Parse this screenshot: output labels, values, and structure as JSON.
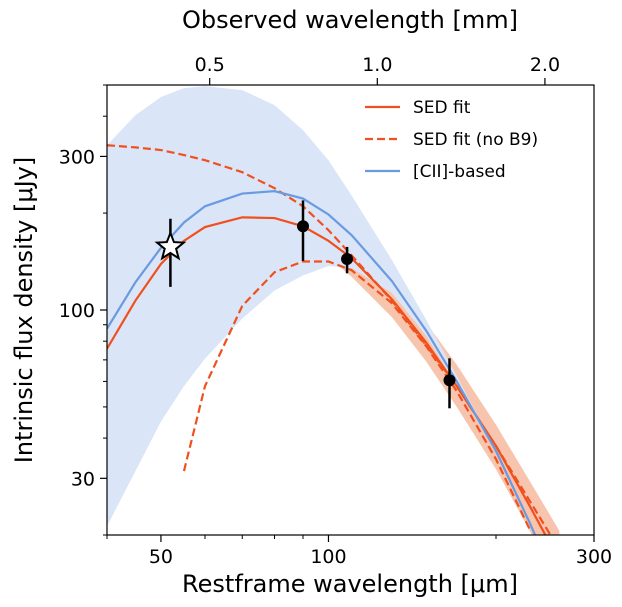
{
  "chart_data": {
    "type": "line",
    "x_label": "Restframe wavelength [μm]",
    "x2_label": "Observed wavelength [mm]",
    "y_label": "Intrinsic flux density [μJy]",
    "log_x": true,
    "log_y": true,
    "xlim": [
      40,
      300
    ],
    "xticks": [
      50,
      100,
      300
    ],
    "xminor_ticks": [
      40,
      60,
      70,
      80,
      90,
      200
    ],
    "x2lim": [
      0.327,
      2.45
    ],
    "x2ticks": [
      0.5,
      {
        "value": 1,
        "label": "1.0"
      },
      {
        "value": 2,
        "label": "2.0"
      }
    ],
    "ylim": [
      20,
      500
    ],
    "yticks": [
      30,
      100,
      300
    ],
    "yminor_ticks": [
      20,
      40,
      50,
      60,
      70,
      80,
      90,
      200,
      400,
      500
    ],
    "legend": "upper right",
    "x": [
      40,
      45,
      50,
      55,
      60,
      70,
      80,
      90,
      100,
      110,
      130,
      150,
      170,
      200,
      230,
      260
    ],
    "series": [
      {
        "name": "SED fit",
        "color": "#f0501e",
        "dashed": false,
        "values": [
          75.8,
          107,
          139,
          164,
          181,
          194,
          193,
          182,
          164,
          145,
          108,
          79,
          58,
          37.8,
          24.6,
          16.6
        ],
        "band_color": "#f7c4ad",
        "band_upper": [
          94,
          128,
          161,
          187,
          204,
          218,
          218,
          207,
          187,
          164,
          123,
          91,
          67.6,
          44,
          29.4,
          20.6
        ],
        "band_lower": [
          59,
          87.5,
          118,
          143,
          159,
          173,
          171,
          161,
          146,
          127,
          95,
          69,
          50,
          32,
          20.6,
          13.4
        ]
      },
      {
        "name": "SED fit (no B9)",
        "color": "#f0501e",
        "dashed": true,
        "values": [
          325,
          320,
          314,
          303,
          292,
          268,
          239,
          210,
          177,
          148,
          107,
          77.5,
          58,
          37.8,
          25.5,
          18
        ],
        "values_lower": [
          null,
          null,
          null,
          31.6,
          58,
          103,
          131,
          141.5,
          141.5,
          133,
          105,
          77,
          56,
          34.4,
          20.8,
          null
        ]
      },
      {
        "name": "[CII]-based",
        "color": "#6a9ae0",
        "dashed": false,
        "values": [
          87.5,
          122,
          156,
          187,
          210,
          230,
          234,
          222,
          198,
          171,
          123,
          86,
          60,
          36.5,
          21.8,
          13.4
        ],
        "band_color": "#dbe5f8",
        "band_upper": [
          325,
          403,
          459,
          489,
          496,
          482,
          433,
          362,
          292,
          227,
          143,
          93,
          62.5,
          36.5,
          21.8,
          13.4
        ],
        "band_lower": [
          21.3,
          31.6,
          45,
          58,
          70.6,
          94,
          115,
          128,
          137,
          135,
          113,
          83,
          58.5,
          36,
          21.5,
          13.2
        ]
      }
    ],
    "points": {
      "x": [
        90,
        108,
        165
      ],
      "values": [
        182,
        144,
        60.5
      ],
      "lower": [
        142,
        130,
        49.5
      ],
      "upper": [
        219,
        157,
        70.8
      ]
    },
    "star": {
      "x": 52,
      "value": 157,
      "lower": 118,
      "upper": 192
    }
  }
}
